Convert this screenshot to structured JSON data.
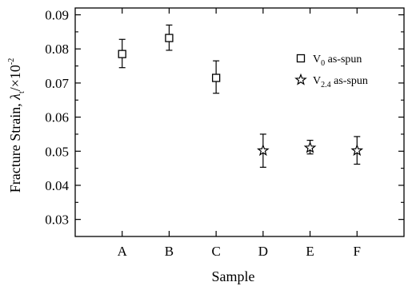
{
  "chart_data": {
    "type": "scatter",
    "categories": [
      "A",
      "B",
      "C",
      "D",
      "E",
      "F"
    ],
    "xlabel": "Sample",
    "ylabel": {
      "main": "Fracture Strain, ",
      "symbol": "λ",
      "sub": "t",
      "rest": "/×10",
      "exp": "-2"
    },
    "ylim": [
      0.025,
      0.092
    ],
    "yticks": [
      0.03,
      0.04,
      0.05,
      0.06,
      0.07,
      0.08,
      0.09
    ],
    "ytick_labels": [
      "0.03",
      "0.04",
      "0.05",
      "0.06",
      "0.07",
      "0.08",
      "0.09"
    ],
    "grid": false,
    "legend_position": "top-right",
    "series": [
      {
        "name": "V0 as-spun",
        "legend": {
          "base": "V",
          "sub": "0",
          "rest": " as-spun"
        },
        "marker": "square",
        "points": [
          {
            "category": "A",
            "y": 0.0785,
            "err_low": 0.0745,
            "err_high": 0.0828
          },
          {
            "category": "B",
            "y": 0.0832,
            "err_low": 0.0796,
            "err_high": 0.087
          },
          {
            "category": "C",
            "y": 0.0715,
            "err_low": 0.067,
            "err_high": 0.0765
          }
        ]
      },
      {
        "name": "V2.4 as-spun",
        "legend": {
          "base": "V",
          "sub": "2.4",
          "rest": " as-spun"
        },
        "marker": "star",
        "points": [
          {
            "category": "D",
            "y": 0.0502,
            "err_low": 0.0453,
            "err_high": 0.055
          },
          {
            "category": "E",
            "y": 0.051,
            "err_low": 0.0492,
            "err_high": 0.0532
          },
          {
            "category": "F",
            "y": 0.0502,
            "err_low": 0.0462,
            "err_high": 0.0543
          }
        ]
      }
    ]
  }
}
